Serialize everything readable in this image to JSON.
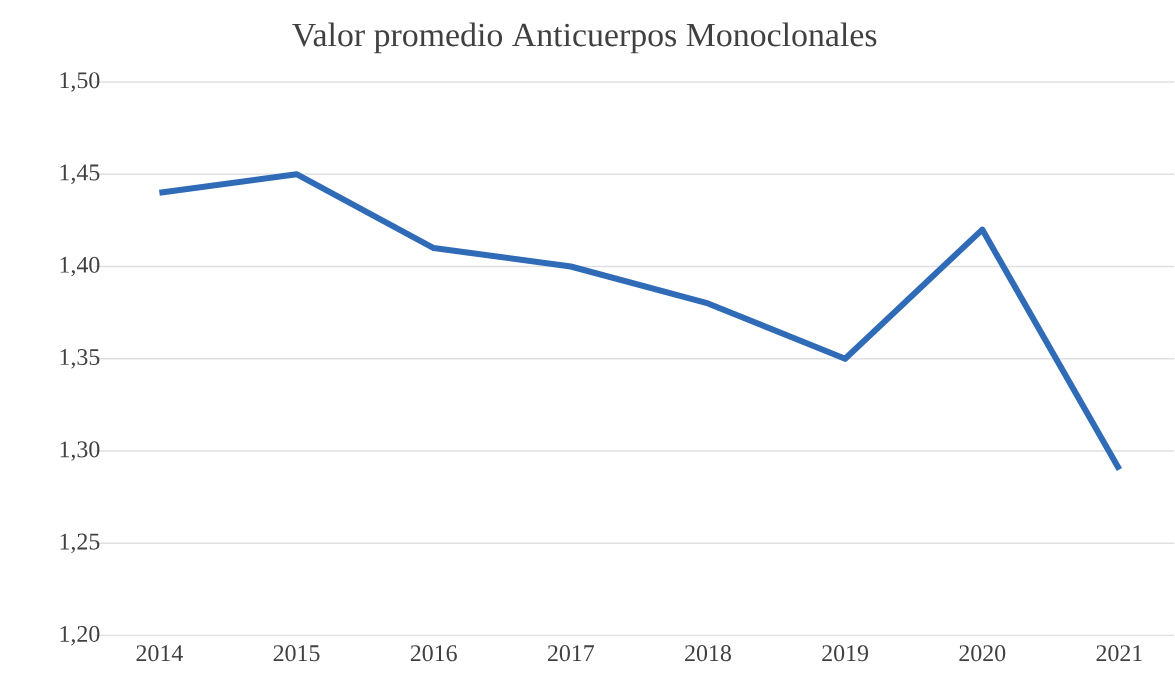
{
  "chart_data": {
    "type": "line",
    "title": "Valor  promedio Anticuerpos Monoclonales",
    "categories": [
      "2014",
      "2015",
      "2016",
      "2017",
      "2018",
      "2019",
      "2020",
      "2021"
    ],
    "series": [
      {
        "color": "#2f6bb7",
        "values": [
          1.44,
          1.45,
          1.41,
          1.4,
          1.38,
          1.35,
          1.42,
          1.29
        ]
      }
    ],
    "ylim": [
      1.2,
      1.5
    ],
    "yticks": [
      {
        "value": 1.2,
        "label": "1,20"
      },
      {
        "value": 1.25,
        "label": "1,25"
      },
      {
        "value": 1.3,
        "label": "1,30"
      },
      {
        "value": 1.35,
        "label": "1,35"
      },
      {
        "value": 1.4,
        "label": "1,40"
      },
      {
        "value": 1.45,
        "label": "1,45"
      },
      {
        "value": 1.5,
        "label": "1,50"
      }
    ],
    "grid": "y",
    "marker": "none",
    "line_style": "solid"
  }
}
